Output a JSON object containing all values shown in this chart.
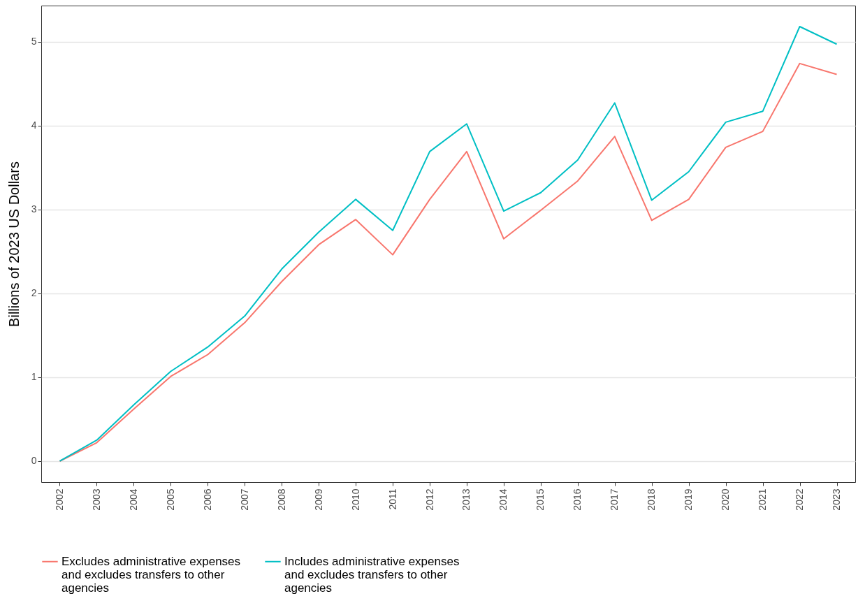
{
  "chart_data": {
    "type": "line",
    "ylabel": "Billions of 2023 US Dollars",
    "categories": [
      "2002",
      "2003",
      "2004",
      "2005",
      "2006",
      "2007",
      "2008",
      "2009",
      "2010",
      "2011",
      "2012",
      "2013",
      "2014",
      "2015",
      "2016",
      "2017",
      "2018",
      "2019",
      "2020",
      "2021",
      "2022",
      "2023"
    ],
    "series": [
      {
        "name": "Excludes administrative expenses and excludes transfers to other agencies",
        "color": "#f8766d",
        "values": [
          0,
          0.22,
          0.62,
          1.01,
          1.27,
          1.65,
          2.14,
          2.58,
          2.88,
          2.46,
          3.12,
          3.69,
          2.65,
          2.99,
          3.34,
          3.87,
          2.87,
          3.12,
          3.74,
          3.93,
          4.74,
          4.61
        ]
      },
      {
        "name": "Includes administrative expenses and excludes transfers to other agencies",
        "color": "#00bfc4",
        "values": [
          0,
          0.25,
          0.67,
          1.07,
          1.36,
          1.73,
          2.29,
          2.73,
          3.12,
          2.75,
          3.69,
          4.02,
          2.98,
          3.2,
          3.59,
          4.27,
          3.11,
          3.45,
          4.04,
          4.17,
          5.18,
          4.97
        ]
      }
    ],
    "ylim": [
      -0.25,
      5.43
    ],
    "yticks": [
      0,
      1,
      2,
      3,
      4,
      5
    ],
    "grid": "y",
    "legend": "bottom",
    "marker": "none",
    "line_style": "solid"
  }
}
